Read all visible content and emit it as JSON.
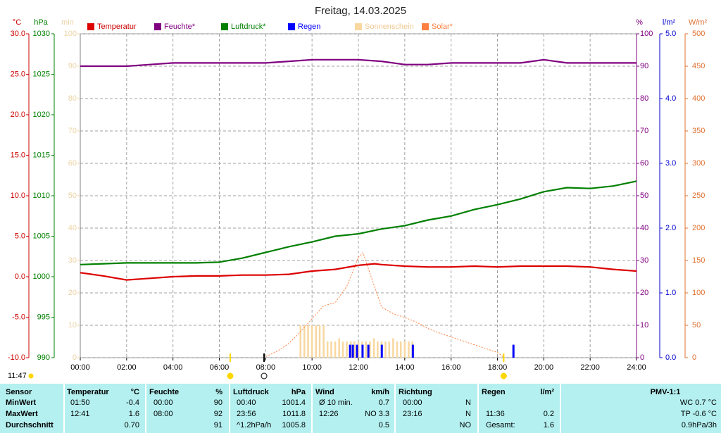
{
  "chart_data": {
    "type": "line",
    "title": "Freitag, 14.03.2025",
    "xlim": [
      0,
      24
    ],
    "xticks": [
      {
        "value": 0,
        "label": "00:00"
      },
      {
        "value": 2,
        "label": "02:00"
      },
      {
        "value": 4,
        "label": "04:00"
      },
      {
        "value": 6,
        "label": "06:00"
      },
      {
        "value": 8,
        "label": "08:00"
      },
      {
        "value": 10,
        "label": "10:00"
      },
      {
        "value": 12,
        "label": "12:00"
      },
      {
        "value": 14,
        "label": "14:00"
      },
      {
        "value": 16,
        "label": "16:00"
      },
      {
        "value": 18,
        "label": "18:00"
      },
      {
        "value": 20,
        "label": "20:00"
      },
      {
        "value": 22,
        "label": "22:00"
      },
      {
        "value": 24,
        "label": "24:00"
      }
    ],
    "grid": true,
    "axes": [
      {
        "name": "°C",
        "color": "#cc0000",
        "ylim": [
          -10,
          30
        ],
        "yticks": [
          {
            "value": -10,
            "label": "-10.0"
          },
          {
            "value": -5,
            "label": "-5.0"
          },
          {
            "value": 0,
            "label": "0.0"
          },
          {
            "value": 5,
            "label": "5.0"
          },
          {
            "value": 10,
            "label": "10.0"
          },
          {
            "value": 15,
            "label": "15.0"
          },
          {
            "value": 20,
            "label": "20.0"
          },
          {
            "value": 25,
            "label": "25.0"
          },
          {
            "value": 30,
            "label": "30.0"
          }
        ]
      },
      {
        "name": "hPa",
        "color": "#008000",
        "ylim": [
          990,
          1030
        ],
        "yticks": [
          990,
          995,
          1000,
          1005,
          1010,
          1015,
          1020,
          1025,
          1030
        ]
      },
      {
        "name": "min",
        "color": "#ecd3a4",
        "ylim": [
          0,
          100
        ],
        "yticks": [
          0,
          10,
          20,
          30,
          40,
          50,
          60,
          70,
          80,
          90,
          100
        ]
      },
      {
        "name": "%",
        "color": "#800080",
        "ylim": [
          0,
          100
        ],
        "yticks": [
          0,
          10,
          20,
          30,
          40,
          50,
          60,
          70,
          80,
          90,
          100
        ]
      },
      {
        "name": "l/m²",
        "color": "#0000cc",
        "ylim": [
          0,
          5
        ],
        "yticks": [
          {
            "value": 0,
            "label": "0.0"
          },
          {
            "value": 1,
            "label": "1.0"
          },
          {
            "value": 2,
            "label": "2.0"
          },
          {
            "value": 3,
            "label": "3.0"
          },
          {
            "value": 4,
            "label": "4.0"
          },
          {
            "value": 5,
            "label": "5.0"
          }
        ]
      },
      {
        "name": "W/m²",
        "color": "#e07030",
        "ylim": [
          0,
          500
        ],
        "yticks": [
          0,
          50,
          100,
          150,
          200,
          250,
          300,
          350,
          400,
          450,
          500
        ]
      }
    ],
    "series": [
      {
        "name": "Temperatur",
        "color": "#dd0000",
        "axis": 0,
        "kind": "line",
        "x": [
          0,
          1,
          2,
          3,
          4,
          5,
          6,
          7,
          8,
          9,
          10,
          11,
          12,
          12.7,
          13,
          14,
          15,
          16,
          17,
          18,
          19,
          20,
          21,
          22,
          23,
          24
        ],
        "values": [
          0.5,
          0.1,
          -0.4,
          -0.2,
          0.0,
          0.1,
          0.1,
          0.2,
          0.2,
          0.3,
          0.7,
          0.9,
          1.4,
          1.6,
          1.5,
          1.3,
          1.2,
          1.2,
          1.3,
          1.2,
          1.3,
          1.3,
          1.3,
          1.2,
          0.9,
          0.7
        ]
      },
      {
        "name": "Feuchte*",
        "color": "#800080",
        "axis": 3,
        "kind": "line",
        "x": [
          0,
          1,
          2,
          3,
          4,
          5,
          6,
          7,
          8,
          9,
          10,
          11,
          12,
          13,
          14,
          15,
          16,
          17,
          18,
          19,
          20,
          21,
          22,
          23,
          24
        ],
        "values": [
          90,
          90,
          90,
          90.5,
          91,
          91,
          91,
          91,
          91,
          91.5,
          92,
          92,
          92,
          91.5,
          90.5,
          90.5,
          91,
          91,
          91,
          91,
          92,
          91,
          91,
          91,
          91
        ]
      },
      {
        "name": "Luftdruck*",
        "color": "#008000",
        "axis": 1,
        "kind": "line",
        "x": [
          0,
          1,
          2,
          3,
          4,
          5,
          6,
          7,
          8,
          9,
          10,
          11,
          12,
          13,
          14,
          15,
          16,
          17,
          18,
          19,
          20,
          21,
          22,
          23,
          24
        ],
        "values": [
          1001.5,
          1001.6,
          1001.7,
          1001.7,
          1001.7,
          1001.7,
          1001.8,
          1002.3,
          1003.0,
          1003.7,
          1004.3,
          1005.0,
          1005.3,
          1005.9,
          1006.3,
          1007.0,
          1007.5,
          1008.3,
          1008.9,
          1009.6,
          1010.5,
          1011.0,
          1010.9,
          1011.2,
          1011.8
        ]
      },
      {
        "name": "Regen",
        "color": "#0000ff",
        "axis": 4,
        "kind": "bar",
        "x": [
          11.64,
          11.76,
          11.94,
          12.18,
          12.43,
          13.01,
          14.35,
          18.69
        ],
        "values": [
          0.2,
          0.2,
          0.2,
          0.2,
          0.2,
          0.2,
          0.2,
          0.2
        ]
      },
      {
        "name": "Sonnenschein",
        "color": "#f8d8a0",
        "axis": 2,
        "kind": "bar",
        "x": [
          9.5,
          9.67,
          9.83,
          10.0,
          10.17,
          10.33,
          10.5,
          10.67,
          10.83,
          11.0,
          11.17,
          11.33,
          11.5,
          11.67,
          11.83,
          12.0,
          12.17,
          12.33,
          12.5,
          12.67,
          12.83,
          13.0,
          13.17,
          13.33,
          13.5,
          13.67,
          13.83,
          14.0,
          14.17,
          14.33
        ],
        "values": [
          10,
          10,
          10,
          10,
          10,
          10,
          10,
          5,
          5,
          5,
          6,
          5,
          5,
          5,
          5,
          5,
          5,
          5,
          5,
          6,
          5,
          5,
          5,
          5,
          6,
          5,
          5,
          5,
          5,
          5
        ]
      },
      {
        "name": "Solar*",
        "color": "#ff8040",
        "axis": 5,
        "kind": "dashed",
        "x": [
          7.9,
          8.5,
          9,
          9.5,
          10,
          10.5,
          11,
          11.5,
          12,
          12.2,
          12.5,
          13,
          13.5,
          14,
          14.5,
          15,
          15.5,
          16,
          16.5,
          17,
          17.5,
          18,
          18.3
        ],
        "values": [
          0,
          10,
          22,
          40,
          60,
          80,
          85,
          110,
          155,
          162,
          130,
          78,
          68,
          62,
          55,
          45,
          38,
          32,
          26,
          20,
          14,
          8,
          0
        ]
      }
    ],
    "markers": [
      {
        "x": 6.47,
        "color": "#ffd700"
      },
      {
        "x": 7.93,
        "color": "#000000"
      },
      {
        "x": 18.27,
        "color": "#ffd700"
      }
    ],
    "annotation": "11:47"
  },
  "table": {
    "sensor": "Sensor",
    "columns": [
      {
        "name": "Temperatur",
        "unit": "°C"
      },
      {
        "name": "Feuchte",
        "unit": "%"
      },
      {
        "name": "Luftdruck",
        "unit": "hPa"
      },
      {
        "name": "Wind",
        "unit": "km/h"
      },
      {
        "name": "Richtung",
        "unit": null
      },
      {
        "name": "Regen",
        "unit": "l/m²"
      },
      {
        "name": "PMV-1:1",
        "unit": null
      }
    ],
    "rows": [
      {
        "label": "MinWert",
        "cells": [
          [
            "01:50",
            "-0.4"
          ],
          [
            "00:00",
            "90"
          ],
          [
            "00:40",
            "1001.4"
          ],
          [
            "Ø 10 min.",
            "0.7"
          ],
          [
            "00:00",
            "N"
          ],
          [
            null,
            null
          ],
          [
            null,
            "WC 0.7 °C"
          ]
        ]
      },
      {
        "label": "MaxWert",
        "cells": [
          [
            "12:41",
            "1.6"
          ],
          [
            "08:00",
            "92"
          ],
          [
            "23:56",
            "1011.8"
          ],
          [
            "12:26",
            "NO 3.3"
          ],
          [
            "23:16",
            "N"
          ],
          [
            "11:36",
            "0.2"
          ],
          [
            null,
            "TP -0.6 °C"
          ]
        ]
      },
      {
        "label": "Durchschnitt",
        "cells": [
          [
            null,
            "0.70"
          ],
          [
            null,
            "91"
          ],
          [
            "^1.2hPa/h",
            "1005.8"
          ],
          [
            null,
            "0.5"
          ],
          [
            null,
            "NO"
          ],
          [
            "Gesamt:",
            "1.6"
          ],
          [
            null,
            "0.9hPa/3h"
          ]
        ]
      }
    ]
  }
}
